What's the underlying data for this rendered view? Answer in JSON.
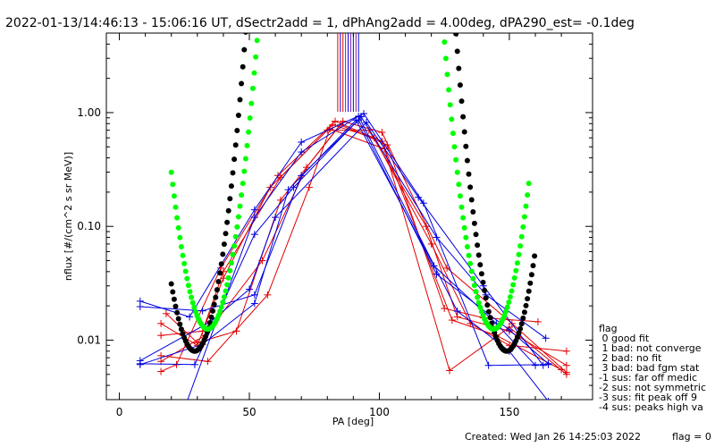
{
  "title": "2022-01-13/14:46:13 - 15:06:16 UT, dSectr2add = 1, dPhAng2add = 4.00deg, dPA290_est=  -0.1deg",
  "footer": {
    "created": "Created: Wed Jan 26 14:25:03 2022",
    "flag": "flag = 0"
  },
  "legend": {
    "title": "flag",
    "entries": [
      " 0 good fit",
      " 1 bad: not converge",
      " 2 bad: no fit",
      " 3 bad: bad fgm stat",
      "-1 sus: far off medic",
      "-2 sus: not symmetric",
      "-3 sus: fit peak off 9",
      "-4 sus: peaks high va"
    ]
  },
  "chart_data": {
    "type": "line",
    "xlabel": "PA [deg]",
    "ylabel": "nflux [#/(cm^2 s sr MeV)]",
    "xlim": [
      -5,
      182
    ],
    "ylim": [
      0.003,
      5.0
    ],
    "yscale": "log",
    "xticks": [
      0,
      50,
      100,
      150
    ],
    "xtick_labels": [
      "0",
      "50",
      "100",
      "150"
    ],
    "yticks": [
      0.01,
      0.1,
      1.0
    ],
    "ytick_labels": [
      "0.01",
      "0.10",
      "1.00"
    ],
    "colors": {
      "red": "#e00000",
      "blue": "#0000e0",
      "black": "#000000",
      "green": "#00ff00",
      "purple": "#7a1fa2"
    },
    "vlines": [
      {
        "x": 84,
        "color": "#e00000"
      },
      {
        "x": 85,
        "color": "#0000e0"
      },
      {
        "x": 86,
        "color": "#e00000"
      },
      {
        "x": 87,
        "color": "#7a1fa2"
      },
      {
        "x": 88,
        "color": "#0000e0"
      },
      {
        "x": 89,
        "color": "#7a1fa2"
      },
      {
        "x": 90,
        "color": "#0000e0"
      },
      {
        "x": 91,
        "color": "#7a1fa2"
      },
      {
        "x": 92,
        "color": "#0000e0"
      }
    ],
    "series": [
      {
        "color": "red",
        "points": [
          [
            16,
            0.011
          ],
          [
            32,
            0.012
          ],
          [
            40,
            0.04
          ],
          [
            62,
            0.27
          ],
          [
            80,
            0.7
          ],
          [
            96,
            0.7
          ],
          [
            118,
            0.1
          ],
          [
            130,
            0.016
          ],
          [
            150,
            0.012
          ],
          [
            172,
            0.006
          ]
        ]
      },
      {
        "color": "red",
        "points": [
          [
            16,
            0.014
          ],
          [
            30,
            0.009
          ],
          [
            40,
            0.035
          ],
          [
            58,
            0.22
          ],
          [
            82,
            0.78
          ],
          [
            98,
            0.6
          ],
          [
            120,
            0.07
          ],
          [
            135,
            0.014
          ],
          [
            150,
            0.009
          ],
          [
            172,
            0.008
          ]
        ]
      },
      {
        "color": "red",
        "points": [
          [
            16,
            0.0053
          ],
          [
            22,
            0.0061
          ],
          [
            39,
            0.043
          ],
          [
            61,
            0.28
          ],
          [
            83,
            0.84
          ],
          [
            101,
            0.56
          ],
          [
            128,
            0.015
          ],
          [
            145,
            0.011
          ],
          [
            170,
            0.0055
          ]
        ]
      },
      {
        "color": "red",
        "points": [
          [
            16,
            0.0065
          ],
          [
            33,
            0.011
          ],
          [
            55,
            0.05
          ],
          [
            72,
            0.33
          ],
          [
            86,
            0.84
          ],
          [
            101,
            0.67
          ],
          [
            126,
            0.043
          ],
          [
            151,
            0.014
          ],
          [
            172,
            0.0052
          ]
        ]
      },
      {
        "color": "red",
        "points": [
          [
            16,
            0.0073
          ],
          [
            34,
            0.0065
          ],
          [
            57,
            0.025
          ],
          [
            73,
            0.22
          ],
          [
            81,
            0.72
          ],
          [
            102,
            0.48
          ],
          [
            127,
            0.0054
          ],
          [
            150,
            0.013
          ],
          [
            172,
            0.005
          ]
        ]
      },
      {
        "color": "red",
        "points": [
          [
            18,
            0.0171
          ],
          [
            30,
            0.0095
          ],
          [
            45,
            0.012
          ],
          [
            62,
            0.17
          ],
          [
            85,
            0.78
          ],
          [
            103,
            0.52
          ],
          [
            125,
            0.019
          ],
          [
            140,
            0.0157
          ],
          [
            161,
            0.0145
          ]
        ]
      },
      {
        "color": "blue",
        "points": [
          [
            8,
            0.022
          ],
          [
            27,
            0.016
          ],
          [
            52,
            0.14
          ],
          [
            70,
            0.55
          ],
          [
            94,
            0.98
          ],
          [
            117,
            0.16
          ],
          [
            142,
            0.006
          ],
          [
            165,
            0.0061
          ]
        ]
      },
      {
        "color": "blue",
        "points": [
          [
            8,
            0.0062
          ],
          [
            29,
            0.0061
          ],
          [
            52,
            0.085
          ],
          [
            67,
            0.22
          ],
          [
            93,
            0.92
          ],
          [
            122,
            0.08
          ],
          [
            141,
            0.025
          ],
          [
            164,
            0.0104
          ]
        ]
      },
      {
        "color": "blue",
        "points": [
          [
            8,
            0.0197
          ],
          [
            32,
            0.0181
          ],
          [
            52,
            0.025
          ],
          [
            70,
            0.28
          ],
          [
            92,
            0.86
          ],
          [
            122,
            0.038
          ],
          [
            150,
            0.0123
          ],
          [
            165,
            0.0062
          ]
        ]
      },
      {
        "color": "blue",
        "points": [
          [
            8,
            0.0061
          ],
          [
            32,
            0.0092
          ],
          [
            52,
            0.021
          ],
          [
            65,
            0.21
          ],
          [
            91,
            0.86
          ],
          [
            121,
            0.045
          ],
          [
            145,
            0.014
          ],
          [
            160,
            0.006
          ]
        ]
      },
      {
        "color": "blue",
        "points": [
          [
            8,
            0.0066
          ],
          [
            35,
            0.0145
          ],
          [
            50,
            0.028
          ],
          [
            60,
            0.12
          ],
          [
            95,
            0.82
          ],
          [
            115,
            0.18
          ],
          [
            140,
            0.03
          ],
          [
            163,
            0.006
          ]
        ]
      },
      {
        "color": "blue",
        "points": [
          [
            25,
            0.0025
          ],
          [
            52,
            0.12
          ],
          [
            70,
            0.45
          ],
          [
            92,
            0.93
          ],
          [
            130,
            0.018
          ],
          [
            150,
            0.008
          ],
          [
            165,
            0.0029
          ]
        ]
      }
    ],
    "fits": [
      {
        "name": "",
        "color": "black",
        "A": 1.0,
        "c": 89,
        "w": 19.0,
        "B": 0.008,
        "lc": 29,
        "lw": 5.2,
        "rc": 149,
        "rw": 5.2,
        "xmin": 20,
        "xmax": 160
      },
      {
        "name": "",
        "color": "green",
        "A": 1.0,
        "c": 89,
        "w": 18.5,
        "B": 0.0125,
        "lc": 34,
        "lw": 5.3,
        "rc": 144,
        "rw": 5.3,
        "xmin": 20,
        "xmax": 158
      }
    ]
  }
}
